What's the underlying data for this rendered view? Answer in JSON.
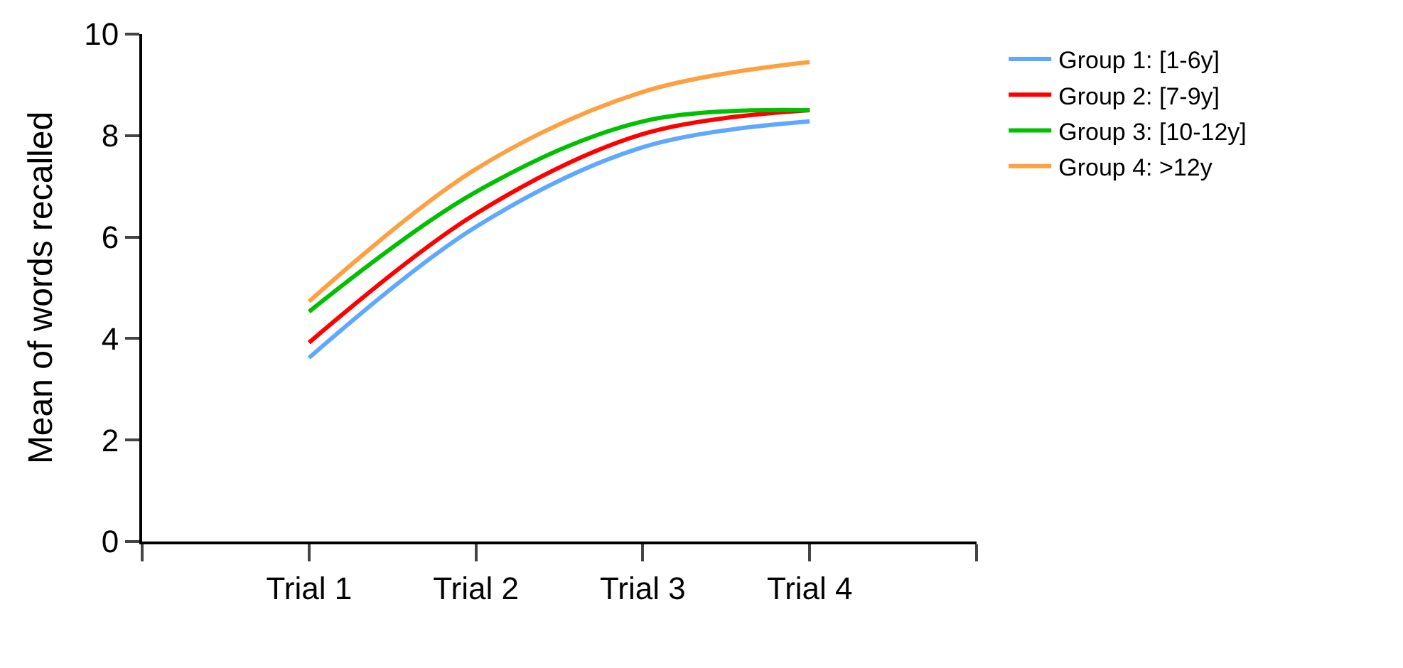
{
  "chart_data": {
    "type": "line",
    "ylabel": "Mean of words recalled",
    "categories": [
      "Trial 1",
      "Trial 2",
      "Trial 3",
      "Trial 4"
    ],
    "series": [
      {
        "name": "Group 1: [1-6y]",
        "color": "#5fa8ff",
        "values": [
          3.62,
          6.2,
          7.77,
          8.28
        ]
      },
      {
        "name": "Group 2: [7-9y]",
        "color": "#ff0000",
        "values": [
          3.92,
          6.46,
          8.03,
          8.5
        ]
      },
      {
        "name": "Group 3: [10-12y]",
        "color": "#00c000",
        "values": [
          4.53,
          6.89,
          8.28,
          8.5
        ]
      },
      {
        "name": "Group 4: >12y",
        "color": "#ffa040",
        "values": [
          4.73,
          7.34,
          8.86,
          9.45
        ]
      }
    ],
    "ylim": [
      0,
      10
    ],
    "yticks": [
      0,
      2,
      4,
      6,
      8,
      10
    ],
    "legend": "top right",
    "marker": "none",
    "line_style": "solid"
  }
}
